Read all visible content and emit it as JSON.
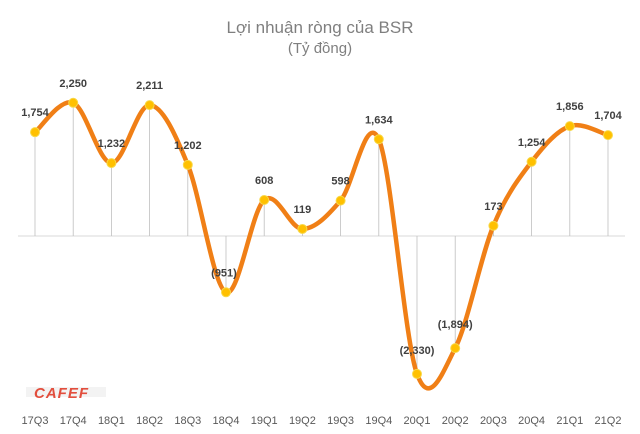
{
  "chart_data": {
    "type": "line",
    "title": "Lợi nhuận ròng của BSR",
    "subtitle": "(Tỷ đồng)",
    "categories": [
      "17Q3",
      "17Q4",
      "18Q1",
      "18Q2",
      "18Q3",
      "18Q4",
      "19Q1",
      "19Q2",
      "19Q3",
      "19Q4",
      "20Q1",
      "20Q2",
      "20Q3",
      "20Q4",
      "21Q1",
      "21Q2"
    ],
    "values": [
      1754,
      2250,
      1232,
      2211,
      1202,
      -951,
      608,
      119,
      598,
      1634,
      -2330,
      -1894,
      173,
      1254,
      1856,
      1704
    ],
    "data_labels": [
      "1,754",
      "2,250",
      "1,232",
      "2,211",
      "1,202",
      "(951)",
      "608",
      "119",
      "598",
      "1,634",
      "(2,330)",
      "(1,894)",
      "173",
      "1,254",
      "1,856",
      "1,704"
    ],
    "ylim": [
      -2700,
      2800
    ],
    "grid": "vertical drop lines",
    "colors": {
      "line": "#f07f16",
      "marker": "#ffc000",
      "marker_edge": "#f7d84a"
    }
  },
  "logo": {
    "text": "CAFEF"
  }
}
